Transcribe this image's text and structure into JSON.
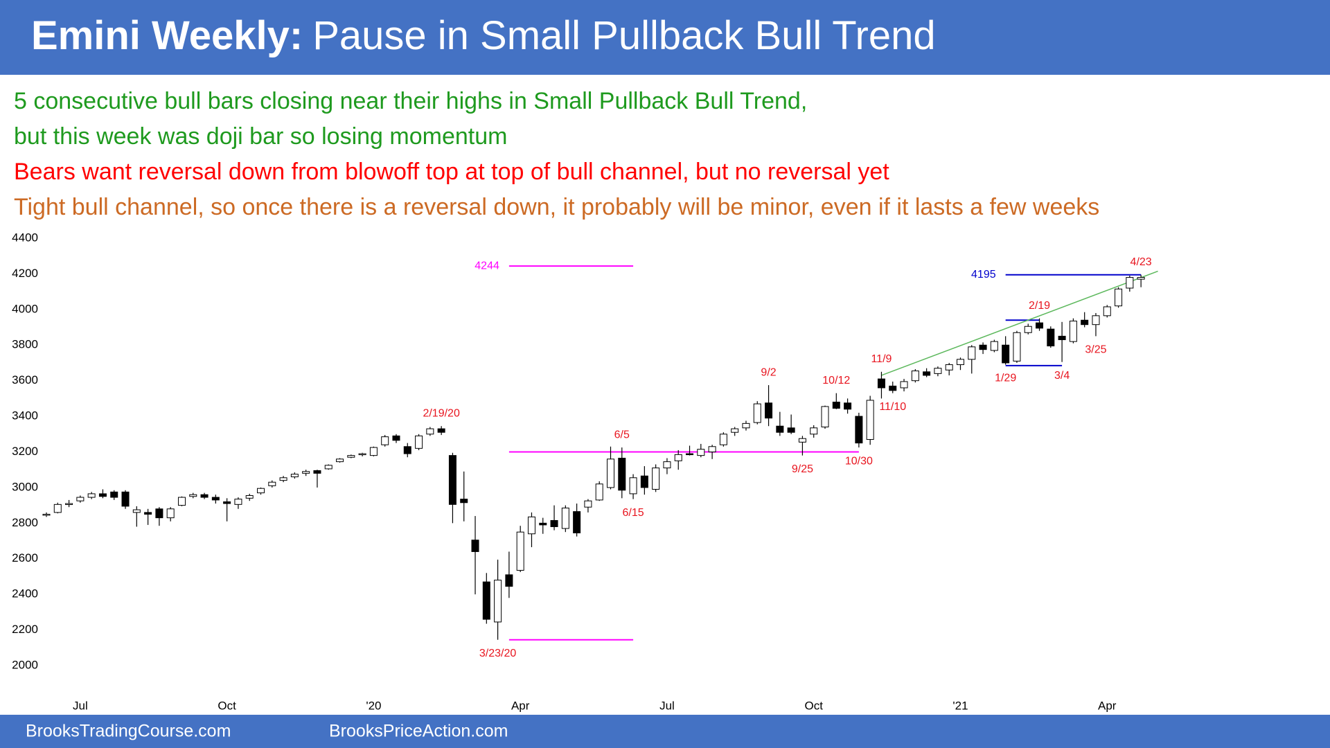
{
  "header": {
    "title_bold": "Emini Weekly:",
    "title": "Pause in Small Pullback Bull Trend",
    "color": "#4472c4"
  },
  "notes": [
    {
      "text": "5 consecutive bull bars closing near their highs in Small Pullback Bull Trend,",
      "color": "#1e9a1e"
    },
    {
      "text": "but this week was doji bar so losing momentum",
      "color": "#1e9a1e"
    },
    {
      "text": "Bears want reversal down from blowoff top at top of bull channel, but no reversal yet",
      "color": "#ff0000"
    },
    {
      "text": "Tight bull channel, so once there is a reversal down, it probably will be minor, even if it lasts a few weeks",
      "color": "#cc6a24"
    }
  ],
  "chart_data": {
    "type": "candlestick",
    "categories": [
      null,
      null,
      null,
      "Jul",
      null,
      null,
      null,
      null,
      null,
      null,
      null,
      null,
      null,
      null,
      null,
      null,
      "Oct",
      null,
      null,
      null,
      null,
      null,
      null,
      null,
      null,
      null,
      null,
      null,
      null,
      "'20",
      null,
      null,
      null,
      null,
      null,
      null,
      null,
      null,
      null,
      null,
      null,
      null,
      "Apr",
      null,
      null,
      null,
      null,
      null,
      null,
      null,
      null,
      null,
      null,
      null,
      null,
      "Jul",
      null,
      null,
      null,
      null,
      null,
      null,
      null,
      null,
      null,
      null,
      null,
      null,
      "Oct",
      null,
      null,
      null,
      null,
      null,
      null,
      null,
      null,
      null,
      null,
      null,
      null,
      "'21",
      null,
      null,
      null,
      null,
      null,
      null,
      null,
      null,
      null,
      null,
      null,
      null,
      "Apr",
      null,
      null,
      null
    ],
    "open": [
      2845,
      2860,
      2905,
      2925,
      2945,
      2965,
      2975,
      2975,
      2860,
      2860,
      2880,
      2830,
      2900,
      2950,
      2960,
      2945,
      2920,
      2905,
      2940,
      2970,
      3010,
      3040,
      3060,
      3080,
      3095,
      3105,
      3145,
      3170,
      3185,
      3180,
      3240,
      3290,
      3230,
      3220,
      3300,
      3330,
      3180,
      2935,
      2705,
      2470,
      2245,
      2510,
      2535,
      2740,
      2800,
      2815,
      2770,
      2865,
      2890,
      2930,
      3000,
      3165,
      2965,
      3065,
      2990,
      3110,
      3150,
      3190,
      3180,
      3200,
      3240,
      3310,
      3335,
      3365,
      3475,
      3345,
      3335,
      3255,
      3300,
      3340,
      3480,
      3475,
      3400,
      3270,
      3610,
      3570,
      3560,
      3600,
      3650,
      3640,
      3660,
      3690,
      3720,
      3800,
      3770,
      3800,
      3710,
      3870,
      3925,
      3890,
      3850,
      3820,
      3940,
      3915,
      3965,
      4020,
      4120,
      4170
    ],
    "high": [
      2860,
      2915,
      2930,
      2955,
      2975,
      2990,
      2985,
      2985,
      2895,
      2880,
      2890,
      2890,
      2950,
      2970,
      2970,
      2960,
      2940,
      2945,
      2965,
      3000,
      3040,
      3065,
      3085,
      3100,
      3100,
      3130,
      3165,
      3185,
      3195,
      3230,
      3295,
      3300,
      3250,
      3300,
      3340,
      3345,
      3195,
      3090,
      2840,
      2520,
      2595,
      2640,
      2785,
      2860,
      2830,
      2900,
      2900,
      2910,
      2935,
      3035,
      3230,
      3225,
      3075,
      3120,
      3130,
      3165,
      3210,
      3235,
      3245,
      3240,
      3310,
      3340,
      3375,
      3485,
      3575,
      3425,
      3410,
      3290,
      3350,
      3460,
      3530,
      3500,
      3420,
      3515,
      3650,
      3595,
      3610,
      3665,
      3670,
      3680,
      3700,
      3730,
      3800,
      3815,
      3830,
      3850,
      3880,
      3920,
      3950,
      3905,
      3930,
      3950,
      3985,
      3980,
      4025,
      4125,
      4190,
      4195
    ],
    "low": [
      2835,
      2855,
      2890,
      2915,
      2935,
      2940,
      2930,
      2880,
      2780,
      2790,
      2785,
      2810,
      2895,
      2940,
      2935,
      2910,
      2810,
      2880,
      2925,
      2960,
      3000,
      3030,
      3050,
      3065,
      3000,
      3100,
      3140,
      3165,
      3175,
      3175,
      3230,
      3250,
      3170,
      3210,
      3290,
      3295,
      2800,
      2810,
      2400,
      2235,
      2145,
      2380,
      2525,
      2665,
      2740,
      2760,
      2750,
      2725,
      2860,
      2925,
      2990,
      2940,
      2935,
      2960,
      2975,
      3075,
      3100,
      3180,
      3170,
      3160,
      3230,
      3290,
      3320,
      3355,
      3345,
      3290,
      3300,
      3180,
      3280,
      3330,
      3440,
      3415,
      3225,
      3240,
      3500,
      3530,
      3540,
      3590,
      3620,
      3625,
      3630,
      3660,
      3640,
      3750,
      3760,
      3690,
      3700,
      3860,
      3880,
      3785,
      3705,
      3810,
      3900,
      3850,
      3955,
      4010,
      4100,
      4125
    ],
    "close": [
      2850,
      2905,
      2910,
      2945,
      2965,
      2950,
      2945,
      2895,
      2875,
      2850,
      2830,
      2880,
      2945,
      2960,
      2945,
      2930,
      2910,
      2935,
      2955,
      2995,
      3030,
      3055,
      3075,
      3090,
      3080,
      3125,
      3160,
      3180,
      3190,
      3225,
      3285,
      3265,
      3190,
      3290,
      3330,
      3310,
      2905,
      2915,
      2640,
      2260,
      2480,
      2445,
      2750,
      2835,
      2790,
      2780,
      2885,
      2745,
      2925,
      3020,
      3160,
      2985,
      3055,
      3000,
      3110,
      3145,
      3185,
      3185,
      3215,
      3230,
      3300,
      3330,
      3360,
      3470,
      3390,
      3310,
      3310,
      3275,
      3335,
      3455,
      3445,
      3440,
      3250,
      3490,
      3560,
      3545,
      3595,
      3655,
      3630,
      3670,
      3690,
      3720,
      3790,
      3775,
      3820,
      3700,
      3870,
      3905,
      3895,
      3795,
      3830,
      3935,
      3915,
      3965,
      4015,
      4115,
      4180,
      4180
    ],
    "ylim": [
      2000,
      4400
    ],
    "yticks": [
      2000,
      2200,
      2400,
      2600,
      2800,
      3000,
      3200,
      3400,
      3600,
      3800,
      4000,
      4200,
      4400
    ],
    "grid": false,
    "bull_color": "#ffffff",
    "bear_color": "#000000",
    "hlines": [
      {
        "value": 4244,
        "start": 41,
        "end": 52,
        "color": "#ff00ff",
        "show_value": true
      },
      {
        "value": 3200,
        "start": 41,
        "end": 72,
        "color": "#ff00ff",
        "show_value": false
      },
      {
        "value": 2145,
        "start": 41,
        "end": 52,
        "color": "#ff00ff",
        "show_value": false
      },
      {
        "value": 4195,
        "start": 85,
        "end": 97,
        "color": "#0000cc",
        "show_value": true
      },
      {
        "value": 3940,
        "start": 85,
        "end": 88,
        "color": "#0000cc",
        "show_value": false
      },
      {
        "value": 3685,
        "start": 85,
        "end": 90,
        "color": "#0000cc",
        "show_value": false
      }
    ],
    "trendline": {
      "start": 74,
      "start_value": 3630,
      "end": 98.5,
      "end_value": 4215,
      "color": "#5cb85c"
    },
    "annotations": [
      {
        "text": "2/19/20",
        "index": 35,
        "side": "above"
      },
      {
        "text": "3/23/20",
        "index": 40,
        "side": "below"
      },
      {
        "text": "6/5",
        "index": 51,
        "side": "above"
      },
      {
        "text": "6/15",
        "index": 52,
        "side": "below"
      },
      {
        "text": "9/2",
        "index": 64,
        "side": "above"
      },
      {
        "text": "9/25",
        "index": 67,
        "side": "below"
      },
      {
        "text": "10/12",
        "index": 70,
        "side": "above"
      },
      {
        "text": "10/30",
        "index": 72,
        "side": "below"
      },
      {
        "text": "11/9",
        "index": 74,
        "side": "above"
      },
      {
        "text": "11/10",
        "index": 75,
        "side": "below"
      },
      {
        "text": "1/29",
        "index": 85,
        "side": "below"
      },
      {
        "text": "2/19",
        "index": 88,
        "side": "above"
      },
      {
        "text": "3/4",
        "index": 90,
        "side": "below"
      },
      {
        "text": "3/25",
        "index": 93,
        "side": "below"
      },
      {
        "text": "4/23",
        "index": 97,
        "side": "above"
      }
    ],
    "annotation_color": "#e8141e"
  },
  "footer": {
    "left": "BrooksTradingCourse.com",
    "right": "BrooksPriceAction.com"
  }
}
